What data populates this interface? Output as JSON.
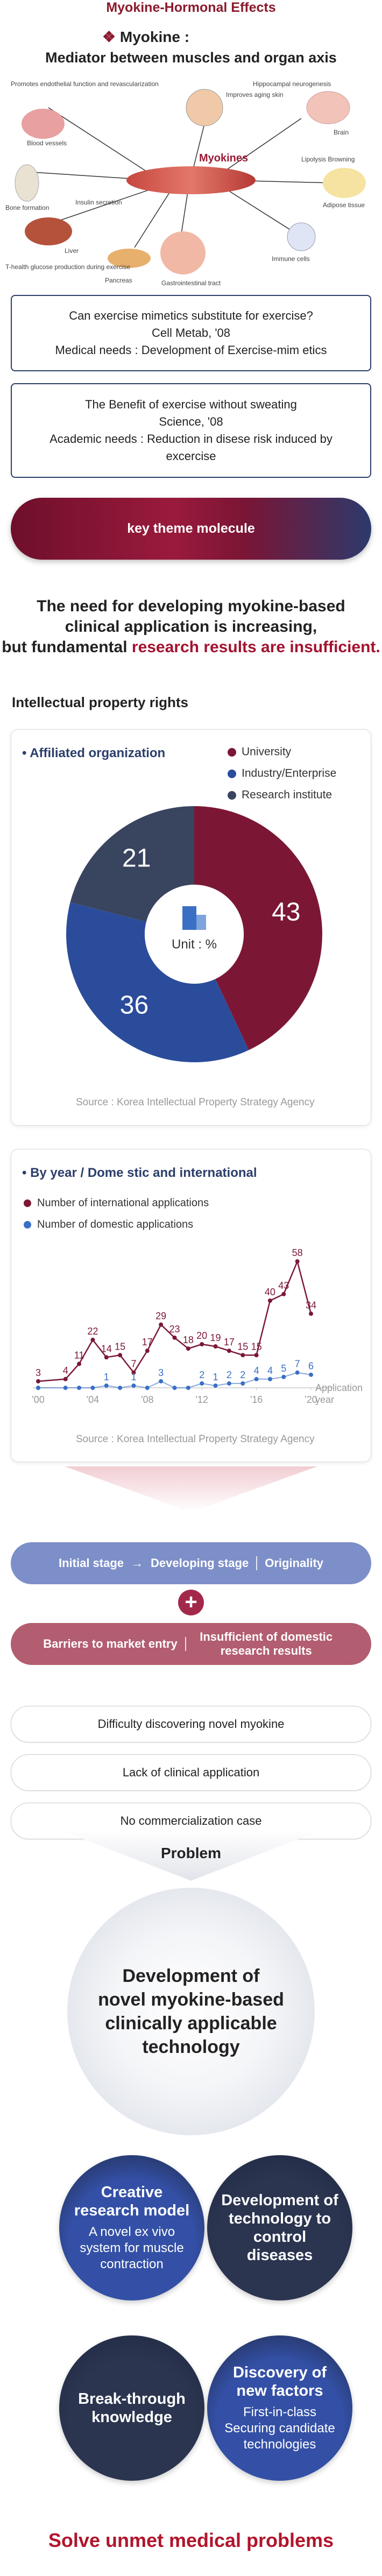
{
  "header": {
    "title": "Myokine-Hormonal Effects",
    "mark": "❖",
    "line1": "Myokine :",
    "line2": "Mediator between muscles and organ axis"
  },
  "diagram": {
    "center_label": "Myokines",
    "labels": [
      "Promotes endothelial function and revascularization",
      "Blood vessels",
      "Improves aging skin",
      "Bone formation",
      "Liver",
      "T-health glucose production during exercise",
      "Pancreas",
      "Gastrointestinal tract",
      "Adipose tissue",
      "Hippocampal neurogenesis",
      "Brain",
      "Lipolysis Browning",
      "Immune cells",
      "Insulin secretion"
    ]
  },
  "needs": [
    {
      "lines": [
        "Can exercise mimetics substitute for exercise?",
        "Cell Metab, '08",
        "Medical needs : Development of Exercise-mim etics"
      ]
    },
    {
      "lines": [
        "The Benefit of exercise without sweating",
        "Science, '08",
        "Academic needs : Reduction in disese risk induced by excercise"
      ]
    }
  ],
  "theme_button": "key theme molecule",
  "statement": {
    "line1": "The need for developing myokine-based",
    "line2": "clinical application is increasing,",
    "line3_plain": "but fundamental ",
    "line3_highlight": "research results are insufficient."
  },
  "section_title": "Intellectual property rights",
  "chart_data": [
    {
      "type": "pie",
      "title": "Affiliated organization",
      "categories": [
        "University",
        "Industry/Enterprise",
        "Research institute"
      ],
      "values": [
        43,
        36,
        21
      ],
      "colors": [
        "#7b1735",
        "#2b4c9b",
        "#39445f"
      ],
      "center_label": "Unit : %",
      "legend": "top-right",
      "source": "Source : Korea Intellectual Property Strategy Agency"
    },
    {
      "type": "line",
      "title": "By year / Dome stic and international",
      "x": [
        2000,
        2002,
        2003,
        2004,
        2005,
        2006,
        2007,
        2008,
        2009,
        2010,
        2011,
        2012,
        2013,
        2014,
        2015,
        2016,
        2017,
        2018,
        2019,
        2020
      ],
      "series": [
        {
          "name": "Number of international applications",
          "color": "#7b1735",
          "values": [
            3,
            4,
            11,
            22,
            14,
            15,
            7,
            17,
            29,
            23,
            18,
            20,
            19,
            17,
            15,
            15,
            40,
            43,
            58,
            34
          ]
        },
        {
          "name": "Number of domestic applications",
          "color": "#3a6fc4",
          "values": [
            0,
            0,
            0,
            0,
            1,
            0,
            1,
            0,
            3,
            0,
            0,
            2,
            1,
            2,
            2,
            4,
            4,
            5,
            7,
            6
          ]
        }
      ],
      "xlim": [
        2000,
        2020
      ],
      "xticks": [
        {
          "value": 2000,
          "label": "'00"
        },
        {
          "value": 2004,
          "label": "'04"
        },
        {
          "value": 2008,
          "label": "'08"
        },
        {
          "value": 2012,
          "label": "'12"
        },
        {
          "value": 2016,
          "label": "'16"
        },
        {
          "value": 2020,
          "label": "'20"
        }
      ],
      "ylim": [
        0,
        60
      ],
      "xlabel": "Application year",
      "legend": "top-left",
      "source": "Source : Korea Intellectual Property Strategy Agency"
    }
  ],
  "stages": {
    "first": "Initial stage",
    "arrow": "→",
    "second": "Developing stage",
    "third": "Originality",
    "plus": "+",
    "barrier": "Barriers to market entry",
    "insufficient": "Insufficient of domestic research results"
  },
  "problems": [
    "Difficulty discovering novel myokine",
    "Lack of clinical application",
    "No commercialization case"
  ],
  "problem_label": "Problem",
  "goal": [
    "Development of",
    "novel myokine-based",
    "clinically applicable",
    "technology"
  ],
  "outcomes": [
    {
      "title": "Creative research model",
      "text": "A novel ex vivo system for muscle contraction",
      "color": "#3450a6"
    },
    {
      "title": "Development of technology to control diseases",
      "color": "#2b3550"
    },
    {
      "title": "Break-through knowledge",
      "color": "#2b3550"
    },
    {
      "title": "Discovery of new factors",
      "text": "First-in-class Securing candidate technologies",
      "color": "#3450a6"
    }
  ],
  "footer": "Solve unmet medical problems"
}
